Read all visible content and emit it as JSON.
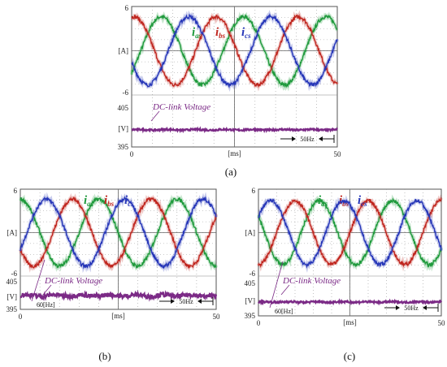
{
  "chart_data": [
    {
      "type": "line",
      "caption": "(a)",
      "xlabel": "[ms]",
      "xlim": [
        0,
        50
      ],
      "x_ticks": [
        "0",
        "50"
      ],
      "current_axis": {
        "unit": "[A]",
        "ylim": [
          -6,
          6
        ],
        "ticks": [
          "6",
          "-6"
        ]
      },
      "voltage_axis": {
        "unit": "[V]",
        "ylim": [
          395,
          405
        ],
        "ticks": [
          "405",
          "395"
        ]
      },
      "grid": true,
      "series": [
        {
          "name": "i",
          "subscript": "as",
          "color": "#1f9a3c",
          "kind": "sine",
          "amplitude": 4.8,
          "frequency_hz": 50,
          "phase_deg": -40
        },
        {
          "name": "i",
          "subscript": "bs",
          "color": "#c0261f",
          "kind": "sine",
          "amplitude": 4.8,
          "frequency_hz": 50,
          "phase_deg": 80
        },
        {
          "name": "i",
          "subscript": "cs",
          "color": "#2636b8",
          "kind": "sine",
          "amplitude": 4.8,
          "frequency_hz": 50,
          "phase_deg": 200
        },
        {
          "name": "DC-link Voltage",
          "color": "#7b2a86",
          "kind": "flat",
          "level": 399.7,
          "ripple": 0.25
        }
      ],
      "annotations": {
        "right_marker": "50Hz"
      }
    },
    {
      "type": "line",
      "caption": "(b)",
      "xlabel": "[ms]",
      "xlim": [
        0,
        50
      ],
      "x_ticks": [
        "0",
        "50"
      ],
      "current_axis": {
        "unit": "[A]",
        "ylim": [
          -6,
          6
        ],
        "ticks": [
          "6",
          "-6"
        ]
      },
      "voltage_axis": {
        "unit": "[V]",
        "ylim": [
          395,
          405
        ],
        "ticks": [
          "405",
          "395"
        ]
      },
      "grid": true,
      "series": [
        {
          "name": "i",
          "subscript": "as",
          "color": "#1f9a3c",
          "kind": "sine",
          "amplitude": 4.8,
          "frequency_hz": 50,
          "phase_deg": 90
        },
        {
          "name": "i",
          "subscript": "bs",
          "color": "#c0261f",
          "kind": "sine",
          "amplitude": 4.8,
          "frequency_hz": 50,
          "phase_deg": 210
        },
        {
          "name": "i",
          "subscript": "cs",
          "color": "#2636b8",
          "kind": "sine",
          "amplitude": 4.8,
          "frequency_hz": 50,
          "phase_deg": 330
        },
        {
          "name": "DC-link Voltage",
          "color": "#7b2a86",
          "kind": "flat",
          "level": 400.5,
          "ripple": 0.9
        }
      ],
      "annotations": {
        "left_marker": "60[Hz]",
        "right_marker": "50Hz"
      }
    },
    {
      "type": "line",
      "caption": "(c)",
      "xlabel": "[ms]",
      "xlim": [
        0,
        50
      ],
      "x_ticks": [
        "0",
        "50"
      ],
      "current_axis": {
        "unit": "[A]",
        "ylim": [
          -6,
          6
        ],
        "ticks": [
          "6",
          "-6"
        ]
      },
      "voltage_axis": {
        "unit": "[V]",
        "ylim": [
          395,
          405
        ],
        "ticks": [
          "405",
          "395"
        ]
      },
      "grid": true,
      "series": [
        {
          "name": "i",
          "subscript": "as",
          "color": "#1f9a3c",
          "kind": "sine",
          "amplitude": 4.6,
          "frequency_hz": 50,
          "phase_deg": 150
        },
        {
          "name": "i",
          "subscript": "bs",
          "color": "#c0261f",
          "kind": "sine",
          "amplitude": 4.6,
          "frequency_hz": 50,
          "phase_deg": 270
        },
        {
          "name": "i",
          "subscript": "cs",
          "color": "#2636b8",
          "kind": "sine",
          "amplitude": 4.6,
          "frequency_hz": 50,
          "phase_deg": 30
        },
        {
          "name": "DC-link Voltage",
          "color": "#7b2a86",
          "kind": "flat",
          "level": 399.6,
          "ripple": 0.3
        }
      ],
      "annotations": {
        "left_marker": "60[Hz]",
        "right_marker": "50Hz"
      }
    }
  ]
}
